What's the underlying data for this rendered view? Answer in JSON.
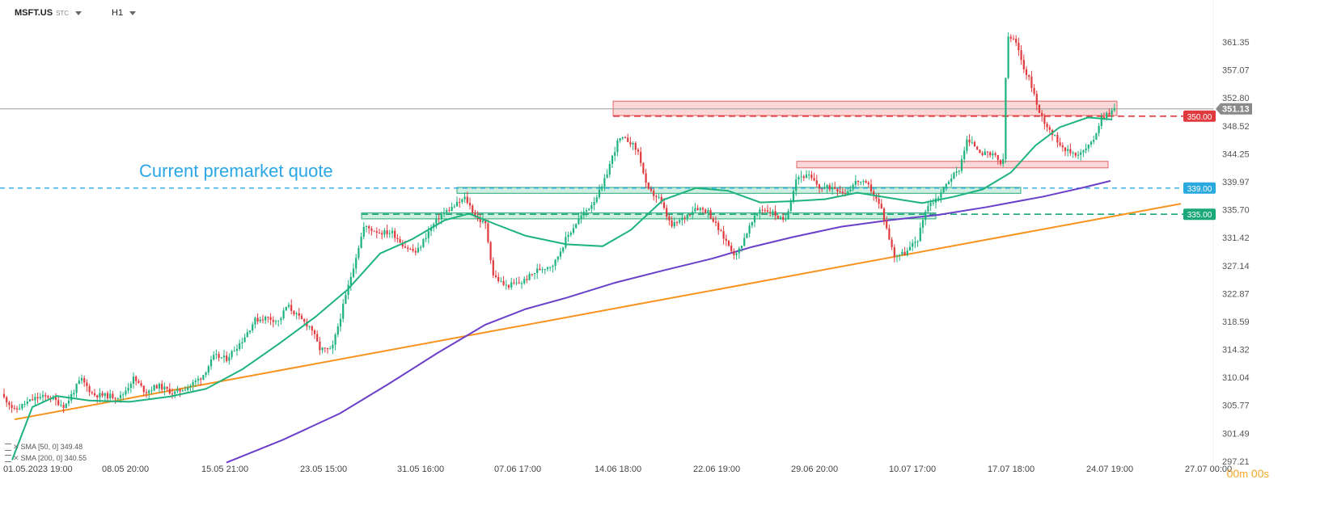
{
  "header": {
    "symbol": "MSFT.US",
    "symbol_sub": "STC",
    "timeframe": "H1"
  },
  "annotation": {
    "text": "Current premarket quote"
  },
  "indicators": [
    {
      "label": "SMA [50, 0]",
      "value": "349.48",
      "color": "#1db37e"
    },
    {
      "label": "SMA [200, 0]",
      "value": "340.55",
      "color": "#6a3fc9"
    }
  ],
  "timer": {
    "minutes": "00",
    "m": "m",
    "seconds": "00",
    "s": "s"
  },
  "chart_data": {
    "type": "candlestick",
    "symbol": "MSFT.US",
    "interval": "H1",
    "y_ticks": [
      "361.35",
      "357.07",
      "352.80",
      "348.52",
      "344.25",
      "339.97",
      "335.70",
      "331.42",
      "327.14",
      "322.87",
      "318.59",
      "314.32",
      "310.04",
      "305.77",
      "301.49",
      "297.21"
    ],
    "x_ticks": [
      "01.05.2023  19:00",
      "08.05  20:00",
      "15.05  21:00",
      "23.05  15:00",
      "31.05  16:00",
      "07.06  17:00",
      "14.06  18:00",
      "22.06  19:00",
      "29.06  20:00",
      "10.07  17:00",
      "17.07  18:00",
      "24.07  19:00",
      "27.07  00:00"
    ],
    "ylim": [
      296.5,
      365.5
    ],
    "current_price": "351.13",
    "price_labels": [
      {
        "value": "350.00",
        "color": "#e03a3e"
      },
      {
        "value": "339.00",
        "color": "#29a9e0"
      },
      {
        "value": "335.00",
        "color": "#1aa87a"
      }
    ],
    "colors": {
      "up": "#1db37e",
      "down": "#e03a3e",
      "sma50": "#1db37e",
      "sma200": "#6a3fc9",
      "trend": "#f7931e",
      "ref339": "#29a9e0"
    },
    "anchors": [
      [
        0,
        307.5
      ],
      [
        10,
        306.3
      ],
      [
        18,
        304.9
      ],
      [
        30,
        306
      ],
      [
        45,
        306.9
      ],
      [
        60,
        307.1
      ],
      [
        80,
        305.6
      ],
      [
        100,
        309.8
      ],
      [
        115,
        307.4
      ],
      [
        135,
        307.2
      ],
      [
        150,
        307.1
      ],
      [
        165,
        309.9
      ],
      [
        180,
        307.8
      ],
      [
        195,
        308.8
      ],
      [
        215,
        307.6
      ],
      [
        235,
        308.8
      ],
      [
        250,
        310.2
      ],
      [
        265,
        313.3
      ],
      [
        280,
        312.9
      ],
      [
        300,
        315.8
      ],
      [
        315,
        318.8
      ],
      [
        330,
        319.2
      ],
      [
        345,
        318.6
      ],
      [
        355,
        321.1
      ],
      [
        370,
        319.1
      ],
      [
        385,
        317.6
      ],
      [
        395,
        314.4
      ],
      [
        410,
        314.1
      ],
      [
        425,
        321.3
      ],
      [
        440,
        328.5
      ],
      [
        450,
        333.1
      ],
      [
        470,
        332.2
      ],
      [
        485,
        332.2
      ],
      [
        500,
        330.1
      ],
      [
        515,
        329.1
      ],
      [
        530,
        332.4
      ],
      [
        545,
        334.9
      ],
      [
        560,
        336.1
      ],
      [
        575,
        337.5
      ],
      [
        590,
        334.3
      ],
      [
        600,
        333.6
      ],
      [
        610,
        325.6
      ],
      [
        625,
        324
      ],
      [
        645,
        324.6
      ],
      [
        665,
        326.5
      ],
      [
        685,
        327.4
      ],
      [
        700,
        331.3
      ],
      [
        715,
        334.2
      ],
      [
        730,
        336.3
      ],
      [
        745,
        339.2
      ],
      [
        755,
        343.1
      ],
      [
        765,
        346.5
      ],
      [
        778,
        346.3
      ],
      [
        790,
        344.3
      ],
      [
        800,
        338.7
      ],
      [
        815,
        337.4
      ],
      [
        830,
        333.1
      ],
      [
        845,
        334.4
      ],
      [
        860,
        336.1
      ],
      [
        875,
        335.5
      ],
      [
        890,
        332.3
      ],
      [
        910,
        328.6
      ],
      [
        925,
        332.7
      ],
      [
        940,
        335.9
      ],
      [
        955,
        335.3
      ],
      [
        970,
        333.7
      ],
      [
        985,
        340.8
      ],
      [
        1000,
        340.8
      ],
      [
        1015,
        338.9
      ],
      [
        1030,
        339.2
      ],
      [
        1045,
        338.3
      ],
      [
        1060,
        340.2
      ],
      [
        1075,
        339.2
      ],
      [
        1090,
        335.7
      ],
      [
        1105,
        328.7
      ],
      [
        1120,
        329.1
      ],
      [
        1135,
        331.3
      ],
      [
        1145,
        336.1
      ],
      [
        1160,
        337.7
      ],
      [
        1175,
        340.6
      ],
      [
        1185,
        341.6
      ],
      [
        1195,
        346.3
      ],
      [
        1205,
        345.5
      ],
      [
        1215,
        344.3
      ],
      [
        1230,
        343.9
      ],
      [
        1240,
        342.3
      ],
      [
        1245,
        362.2
      ],
      [
        1255,
        361.5
      ],
      [
        1265,
        357.7
      ],
      [
        1275,
        354.9
      ],
      [
        1285,
        350.4
      ],
      [
        1295,
        348.5
      ],
      [
        1305,
        346.6
      ],
      [
        1320,
        344.6
      ],
      [
        1335,
        344.2
      ],
      [
        1350,
        345.9
      ],
      [
        1362,
        349.9
      ],
      [
        1378,
        351.1
      ]
    ],
    "sma50_curve": [
      [
        15,
        297.4
      ],
      [
        40,
        305.5
      ],
      [
        70,
        307.2
      ],
      [
        110,
        306.5
      ],
      [
        160,
        306.3
      ],
      [
        210,
        307.1
      ],
      [
        255,
        308.3
      ],
      [
        300,
        311.3
      ],
      [
        345,
        315.2
      ],
      [
        390,
        319.3
      ],
      [
        430,
        323.5
      ],
      [
        470,
        329
      ],
      [
        510,
        331.2
      ],
      [
        550,
        334.1
      ],
      [
        580,
        335.1
      ],
      [
        610,
        333.6
      ],
      [
        650,
        331.7
      ],
      [
        700,
        330.4
      ],
      [
        745,
        330.1
      ],
      [
        780,
        332.6
      ],
      [
        820,
        337.2
      ],
      [
        860,
        339
      ],
      [
        900,
        338.6
      ],
      [
        940,
        336.8
      ],
      [
        980,
        337
      ],
      [
        1020,
        337.3
      ],
      [
        1060,
        338.3
      ],
      [
        1100,
        337.5
      ],
      [
        1140,
        336.7
      ],
      [
        1180,
        337.7
      ],
      [
        1215,
        338.8
      ],
      [
        1250,
        341.4
      ],
      [
        1280,
        345.5
      ],
      [
        1310,
        348.3
      ],
      [
        1345,
        349.8
      ],
      [
        1375,
        349.5
      ]
    ],
    "sma200_curve": [
      [
        280,
        297
      ],
      [
        350,
        300.5
      ],
      [
        420,
        304.5
      ],
      [
        480,
        309
      ],
      [
        540,
        313.7
      ],
      [
        600,
        318.1
      ],
      [
        650,
        320.5
      ],
      [
        700,
        322.2
      ],
      [
        760,
        324.5
      ],
      [
        820,
        326.4
      ],
      [
        880,
        328.2
      ],
      [
        930,
        330
      ],
      [
        980,
        331.5
      ],
      [
        1040,
        333.1
      ],
      [
        1100,
        334.1
      ],
      [
        1160,
        334.9
      ],
      [
        1220,
        336.1
      ],
      [
        1290,
        337.7
      ],
      [
        1340,
        339.1
      ],
      [
        1373,
        340.1
      ]
    ],
    "trend_line": [
      [
        18,
        303.6
      ],
      [
        1460,
        336.6
      ]
    ],
    "zones": [
      {
        "x1": 758,
        "x2": 1381,
        "y1": 352.3,
        "y2": 350.1,
        "kind": "resistance"
      },
      {
        "x1": 985,
        "x2": 1370,
        "y1": 343.1,
        "y2": 342.1,
        "kind": "resistance"
      },
      {
        "x1": 565,
        "x2": 1262,
        "y1": 339.1,
        "y2": 338.2,
        "kind": "support"
      },
      {
        "x1": 447,
        "x2": 1157,
        "y1": 335.2,
        "y2": 334.3,
        "kind": "support"
      }
    ],
    "hlines": [
      {
        "y": 351.13,
        "x1": 0,
        "x2": 1500,
        "style": "solid",
        "kind": "current"
      },
      {
        "y": 350.0,
        "x1": 758,
        "x2": 1500,
        "style": "dash",
        "kind": "r350"
      },
      {
        "y": 339.0,
        "x1": 0,
        "x2": 1500,
        "style": "dash",
        "kind": "ref339"
      },
      {
        "y": 335.0,
        "x1": 447,
        "x2": 1500,
        "style": "dash",
        "kind": "s335"
      }
    ],
    "grid": false
  }
}
